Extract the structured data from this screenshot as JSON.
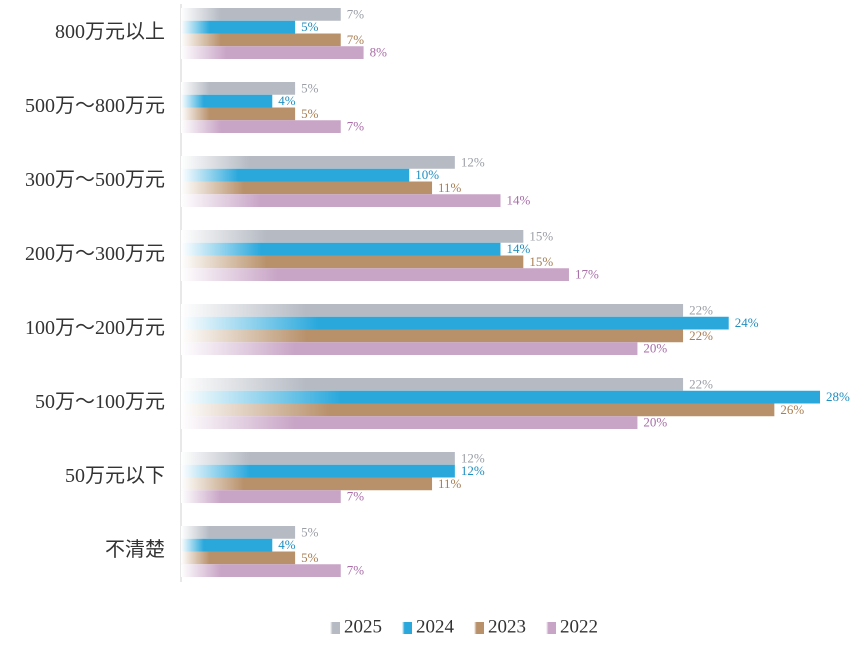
{
  "chart_data": {
    "type": "bar",
    "orientation": "horizontal",
    "categories": [
      "800万元以上",
      "500万～800万元",
      "300万～500万元",
      "200万～300万元",
      "100万～200万元",
      "50万～100万元",
      "50万元以下",
      "不清楚"
    ],
    "series": [
      {
        "name": "2025",
        "color": "#b5bac3",
        "values": [
          7,
          5,
          12,
          15,
          22,
          22,
          12,
          5
        ],
        "value_labels": [
          "7%",
          "5%",
          "12%",
          "15%",
          "22%",
          "22%",
          "12%",
          "5%"
        ]
      },
      {
        "name": "2024",
        "color": "#2aa8dc",
        "values": [
          5,
          4,
          10,
          14,
          24,
          28,
          12,
          4
        ],
        "value_labels": [
          "5%",
          "4%",
          "10%",
          "14%",
          "24%",
          "28%",
          "12%",
          "4%"
        ]
      },
      {
        "name": "2023",
        "color": "#b8916b",
        "values": [
          7,
          5,
          11,
          15,
          22,
          26,
          11,
          5
        ],
        "value_labels": [
          "7%",
          "5%",
          "11%",
          "15%",
          "22%",
          "26%",
          "11%",
          "5%"
        ]
      },
      {
        "name": "2022",
        "color": "#c8a4c6",
        "values": [
          8,
          7,
          14,
          17,
          20,
          20,
          7,
          7
        ],
        "value_labels": [
          "8%",
          "7%",
          "14%",
          "17%",
          "20%",
          "20%",
          "7%",
          "7%"
        ]
      }
    ],
    "legend": "bottom"
  }
}
